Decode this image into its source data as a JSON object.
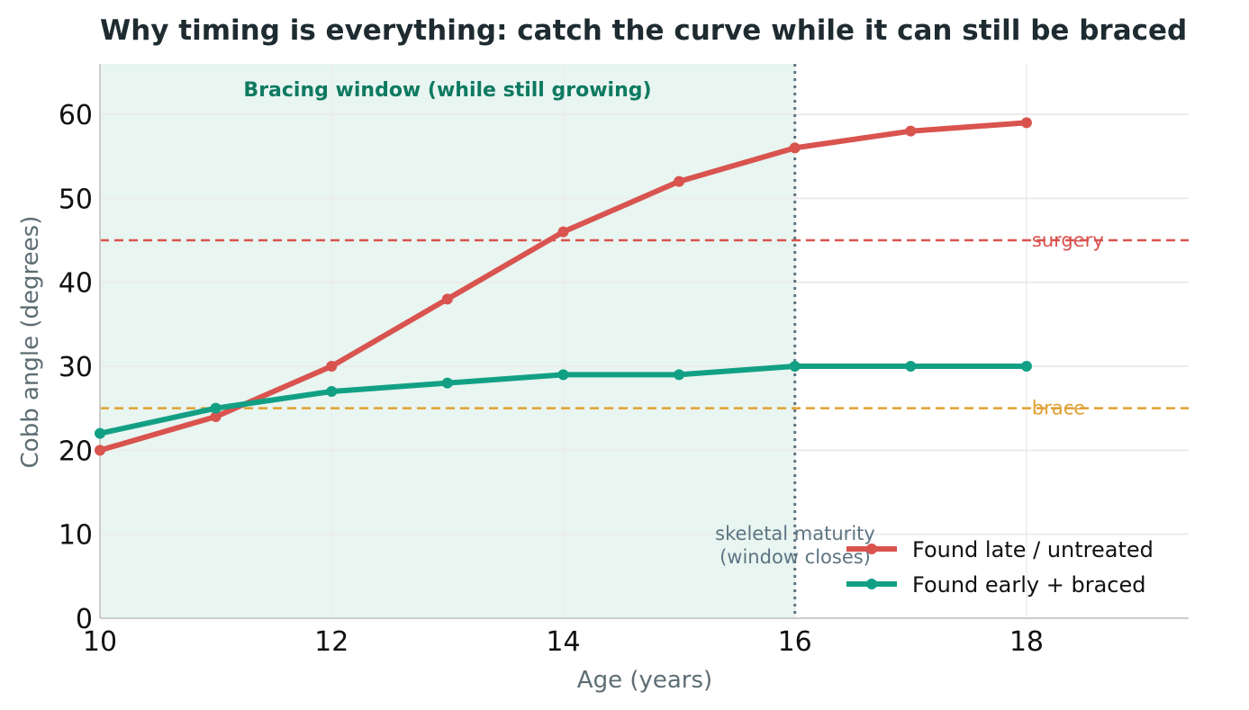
{
  "chart_data": {
    "type": "line",
    "title": "Why timing is everything: catch the curve while it can still be braced",
    "xlabel": "Age (years)",
    "ylabel": "Cobb angle (degrees)",
    "xlim": [
      10,
      19.4
    ],
    "ylim": [
      0,
      66
    ],
    "xticks": [
      10,
      12,
      14,
      16,
      18
    ],
    "yticks": [
      0,
      10,
      20,
      30,
      40,
      50,
      60
    ],
    "grid": true,
    "legend_position": "bottom-right",
    "x": [
      10,
      11,
      12,
      13,
      14,
      15,
      16,
      17,
      18
    ],
    "series": [
      {
        "name": "Found late / untreated",
        "color": "#d9534f",
        "values": [
          20,
          24,
          30,
          38,
          46,
          52,
          56,
          58,
          59
        ]
      },
      {
        "name": "Found early + braced",
        "color": "#12a085",
        "values": [
          22,
          25,
          27,
          28,
          29,
          29,
          30,
          30,
          30
        ]
      }
    ],
    "shaded_region": {
      "x_start": 10,
      "x_end": 16,
      "label": "Bracing window (while still growing)",
      "color": "#e8f5f0"
    },
    "vertical_line": {
      "x": 16,
      "label_line1": "skeletal maturity",
      "label_line2": "(window closes)",
      "color": "#5d7482"
    },
    "reference_lines": [
      {
        "y": 45,
        "label": "surgery",
        "color": "#d9534f"
      },
      {
        "y": 25,
        "label": "brace",
        "color": "#e0a030"
      }
    ]
  }
}
